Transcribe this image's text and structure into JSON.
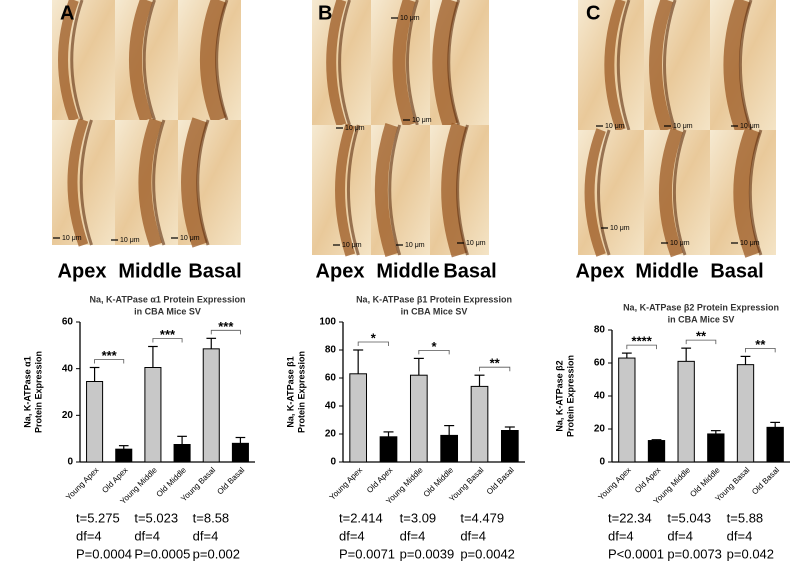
{
  "chart_data": [
    {
      "type": "bar",
      "title": [
        "Na, K-ATPase α1 Protein Expression",
        "in CBA Mice SV"
      ],
      "y_label": [
        "Na, K-ATPase α1",
        "Protein Expression"
      ],
      "categories": [
        "Young Apex",
        "Old Apex",
        "Young Middle",
        "Old Middle",
        "Young Basal",
        "Old Basal"
      ],
      "values": [
        34.5,
        5.5,
        40.5,
        7.5,
        48.5,
        8
      ],
      "errors": [
        6,
        1.5,
        9,
        3.5,
        4.5,
        2.5
      ],
      "colors": [
        "#c8c8c8",
        "#000000",
        "#c8c8c8",
        "#000000",
        "#c8c8c8",
        "#000000"
      ],
      "ylim": [
        0,
        60
      ],
      "yticks": [
        0,
        20,
        40,
        60
      ],
      "annotations": [
        "***",
        "***",
        "***"
      ]
    },
    {
      "type": "bar",
      "title": [
        "Na, K-ATPase β1 Protein Expression",
        "in CBA Mice SV"
      ],
      "y_label": [
        "Na, K-ATPase β1",
        "Protein Expression"
      ],
      "categories": [
        "Young Apex",
        "Old Apex",
        "Young Middle",
        "Old Middle",
        "Young Basal",
        "Old Basal"
      ],
      "values": [
        63,
        18,
        62,
        19,
        54,
        22.5
      ],
      "errors": [
        17,
        3.5,
        12,
        7,
        8,
        2.5
      ],
      "colors": [
        "#c8c8c8",
        "#000000",
        "#c8c8c8",
        "#000000",
        "#c8c8c8",
        "#000000"
      ],
      "ylim": [
        0,
        100
      ],
      "yticks": [
        0,
        20,
        40,
        60,
        80,
        100
      ],
      "annotations": [
        "*",
        "*",
        "**"
      ]
    },
    {
      "type": "bar",
      "title": [
        "Na, K-ATPase β2 Protein Expression",
        "in CBA Mice SV"
      ],
      "y_label": [
        "Na, K-ATPase β2",
        "Protein Expression"
      ],
      "categories": [
        "Young Apex",
        "Old Apex",
        "Young Middle",
        "Old Middle",
        "Young Basal",
        "Old Basal"
      ],
      "values": [
        63,
        13,
        61,
        17,
        59,
        21
      ],
      "errors": [
        3,
        0.5,
        8,
        2,
        5,
        3
      ],
      "colors": [
        "#c8c8c8",
        "#000000",
        "#c8c8c8",
        "#000000",
        "#c8c8c8",
        "#000000"
      ],
      "ylim": [
        0,
        80
      ],
      "yticks": [
        0,
        20,
        40,
        60,
        80
      ],
      "annotations": [
        "****",
        "**",
        "**"
      ]
    }
  ],
  "panels": [
    {
      "label": "A",
      "regions": [
        "Apex",
        "Middle",
        "Basal"
      ],
      "scale_bars": [
        "10 μm",
        "10 μm",
        "10 μm"
      ],
      "stats": [
        [
          "t=5.275",
          "df=4",
          "P=0.0004"
        ],
        [
          "t=5.023",
          "df=4",
          "P=0.0005"
        ],
        [
          "t=8.58",
          "df=4",
          "p=0.002"
        ]
      ]
    },
    {
      "label": "B",
      "regions": [
        "Apex",
        "Middle",
        "Basal"
      ],
      "scale_bars": [
        "10 μm",
        "10 μm",
        "10 μm",
        "10 μm",
        "10 μm",
        "10 μm"
      ],
      "stats": [
        [
          "t=2.414",
          "df=4",
          "P=0.0071"
        ],
        [
          "t=3.09",
          "df=4",
          "p=0.0039"
        ],
        [
          "t=4.479",
          "df=4",
          "p=0.0042"
        ]
      ]
    },
    {
      "label": "C",
      "regions": [
        "Apex",
        "Middle",
        "Basal"
      ],
      "scale_bars": [
        "10 μm",
        "10 μm",
        "10 μm",
        "10 μm",
        "10 μm",
        "10 μm"
      ],
      "stats": [
        [
          "t=22.34",
          "df=4",
          "P<0.0001"
        ],
        [
          "t=5.043",
          "df=4",
          "p=0.0073"
        ],
        [
          "t=5.88",
          "df=4",
          "p=0.042"
        ]
      ]
    }
  ]
}
